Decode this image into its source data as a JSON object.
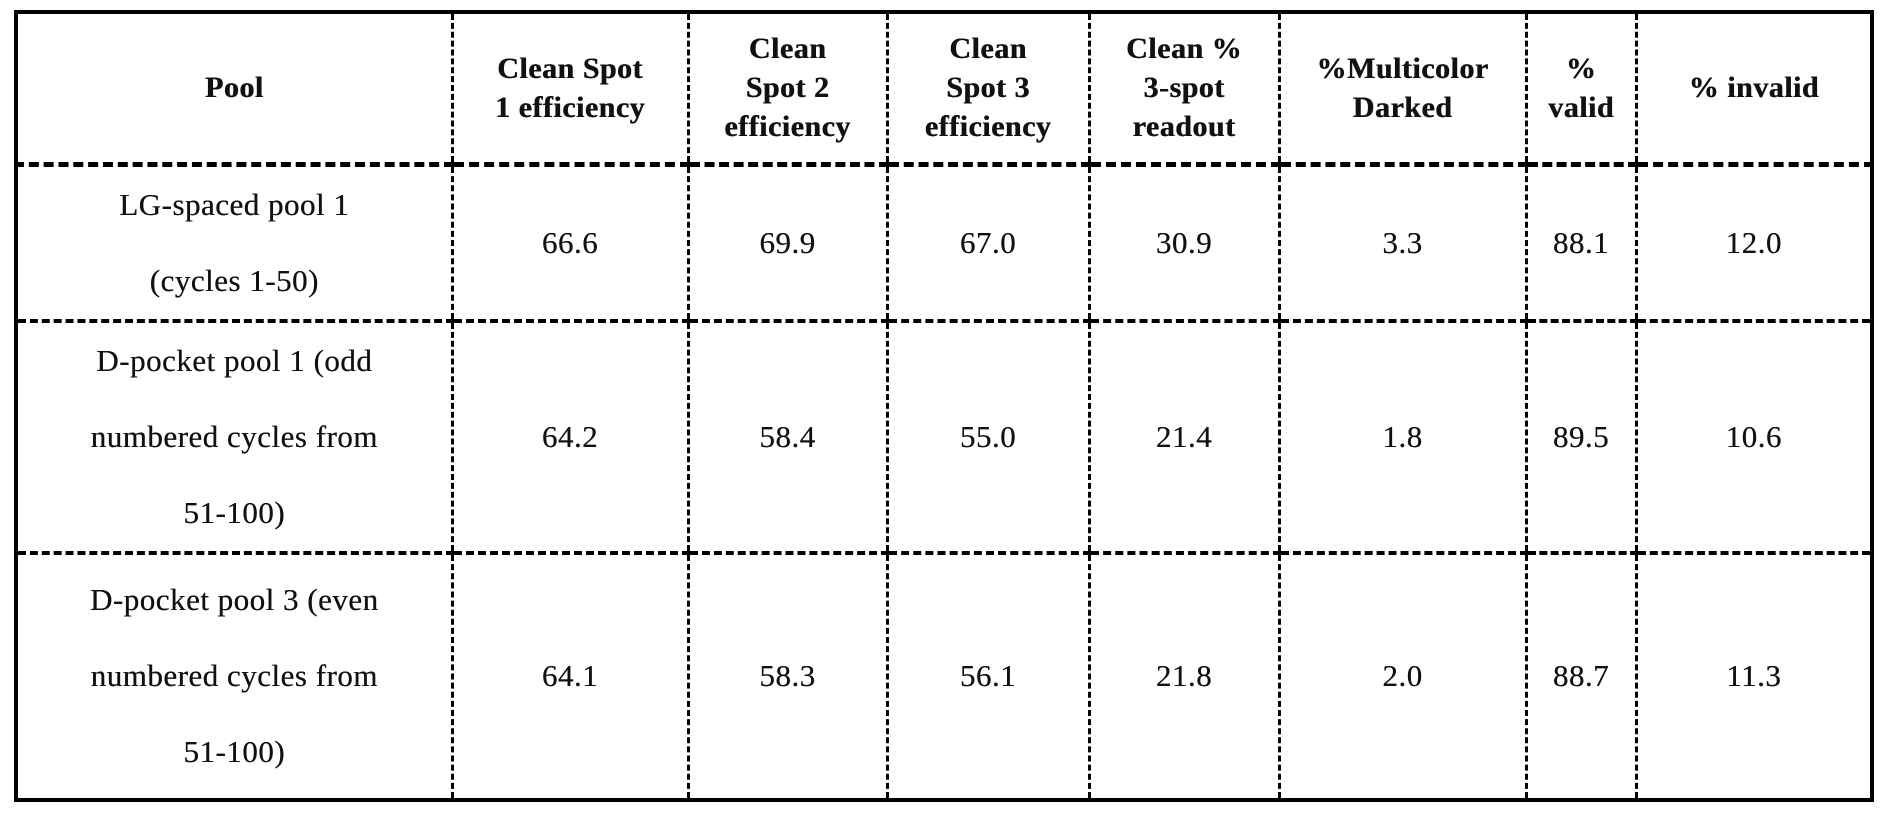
{
  "colors": {
    "background": "#ffffff",
    "ink": "#111111",
    "border": "#000000"
  },
  "table": {
    "headers": [
      {
        "id": "pool",
        "lines": [
          "Pool"
        ]
      },
      {
        "id": "clean-spot-1",
        "lines": [
          "Clean Spot",
          "1 efficiency"
        ]
      },
      {
        "id": "clean-spot-2",
        "lines": [
          "Clean",
          "Spot 2",
          "efficiency"
        ]
      },
      {
        "id": "clean-spot-3",
        "lines": [
          "Clean",
          "Spot 3",
          "efficiency"
        ]
      },
      {
        "id": "clean-3-spot",
        "lines": [
          "Clean %",
          "3-spot",
          "readout"
        ]
      },
      {
        "id": "multicolor-darked",
        "lines": [
          "%Multicolor",
          "Darked"
        ]
      },
      {
        "id": "percent-valid",
        "lines": [
          "%",
          "valid"
        ]
      },
      {
        "id": "percent-invalid",
        "lines": [
          "% invalid"
        ]
      }
    ],
    "rows": [
      {
        "pool_lines": [
          "LG-spaced pool 1",
          "(cycles 1-50)"
        ],
        "values": [
          "66.6",
          "69.9",
          "67.0",
          "30.9",
          "3.3",
          "88.1",
          "12.0"
        ]
      },
      {
        "pool_lines": [
          "D-pocket pool 1 (odd",
          "numbered cycles from",
          "51-100)"
        ],
        "values": [
          "64.2",
          "58.4",
          "55.0",
          "21.4",
          "1.8",
          "89.5",
          "10.6"
        ]
      },
      {
        "pool_lines": [
          "D-pocket pool 3 (even",
          "numbered cycles from",
          "51-100)"
        ],
        "values": [
          "64.1",
          "58.3",
          "56.1",
          "21.8",
          "2.0",
          "88.7",
          "11.3"
        ]
      }
    ]
  }
}
